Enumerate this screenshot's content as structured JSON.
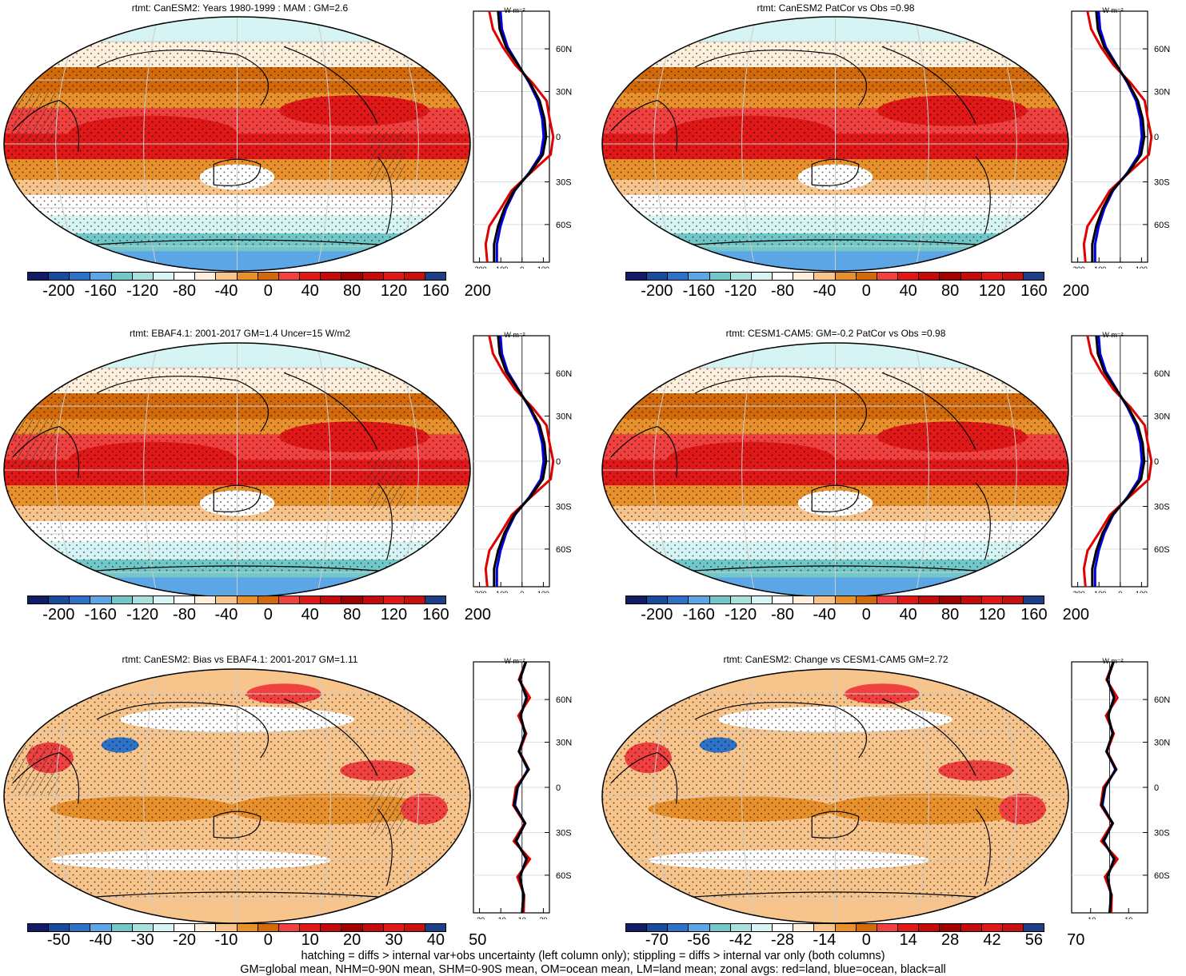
{
  "colors": {
    "levels_20": [
      "#121c64",
      "#1a4a9a",
      "#2d72c6",
      "#5ca6e6",
      "#72c8c8",
      "#a8e0dc",
      "#d6f4f4",
      "#ffffff",
      "#fef0dc",
      "#f7c48c",
      "#e8902c",
      "#d26a0c",
      "#f04040",
      "#e01818",
      "#c40a0a",
      "#a00000",
      "#c40a0a",
      "#e01818",
      "#c81010",
      "#1e3f86"
    ],
    "zonal_land": "#e00000",
    "zonal_ocean": "#0000e0",
    "zonal_all": "#000000"
  },
  "panels": [
    {
      "id": "p1",
      "title": "rtmt: CanESM2: Years 1980-1999 : MAM : GM=2.6",
      "map_kind": "mean",
      "hatching": true,
      "colorbar_labels": [
        "-200",
        "-160",
        "-120",
        "-80",
        "-40",
        "0",
        "40",
        "80",
        "120",
        "160",
        "200"
      ],
      "zonal_unit": "W m⁻²",
      "zonal_xticks": [
        "-200",
        "-100",
        "0",
        "100"
      ],
      "zonal_yticks": [
        "60N",
        "30N",
        "0",
        "30S",
        "60S"
      ]
    },
    {
      "id": "p2",
      "title": "rtmt: CanESM2 PatCor vs Obs =0.98",
      "map_kind": "mean",
      "hatching": false,
      "colorbar_labels": [
        "-200",
        "-160",
        "-120",
        "-80",
        "-40",
        "0",
        "40",
        "80",
        "120",
        "160",
        "200"
      ],
      "zonal_unit": "W m⁻²",
      "zonal_xticks": [
        "-200",
        "-100",
        "0",
        "100"
      ],
      "zonal_yticks": [
        "60N",
        "30N",
        "0",
        "30S",
        "60S"
      ]
    },
    {
      "id": "p3",
      "title": "rtmt: EBAF4.1: 2001-2017 GM=1.4 Uncer=15 W/m2",
      "map_kind": "mean",
      "hatching": true,
      "colorbar_labels": [
        "-200",
        "-160",
        "-120",
        "-80",
        "-40",
        "0",
        "40",
        "80",
        "120",
        "160",
        "200"
      ],
      "zonal_unit": "W m⁻²",
      "zonal_xticks": [
        "-200",
        "-100",
        "0",
        "100"
      ],
      "zonal_yticks": [
        "60N",
        "30N",
        "0",
        "30S",
        "60S"
      ]
    },
    {
      "id": "p4",
      "title": "rtmt: CESM1-CAM5: GM=-0.2 PatCor vs Obs =0.98",
      "map_kind": "mean",
      "hatching": false,
      "colorbar_labels": [
        "-200",
        "-160",
        "-120",
        "-80",
        "-40",
        "0",
        "40",
        "80",
        "120",
        "160",
        "200"
      ],
      "zonal_unit": "W m⁻²",
      "zonal_xticks": [
        "-200",
        "-100",
        "0",
        "100"
      ],
      "zonal_yticks": [
        "60N",
        "30N",
        "0",
        "30S",
        "60S"
      ]
    },
    {
      "id": "p5",
      "title": "rtmt: CanESM2: Bias vs EBAF4.1: 2001-2017 GM=1.11",
      "map_kind": "diff",
      "hatching": true,
      "colorbar_labels": [
        "-50",
        "-40",
        "-30",
        "-20",
        "-10",
        "0",
        "10",
        "20",
        "30",
        "40",
        "50"
      ],
      "zonal_unit": "W m⁻²",
      "zonal_xticks": [
        "-30",
        "-10",
        "10",
        "30"
      ],
      "zonal_yticks": [
        "60N",
        "30N",
        "0",
        "30S",
        "60S"
      ]
    },
    {
      "id": "p6",
      "title": "rtmt: CanESM2: Change vs CESM1-CAM5 GM=2.72",
      "map_kind": "diff",
      "hatching": false,
      "colorbar_labels": [
        "-70",
        "-56",
        "-42",
        "-28",
        "-14",
        "0",
        "14",
        "28",
        "42",
        "56",
        "70"
      ],
      "zonal_unit": "W m⁻²",
      "zonal_xticks": [
        "-10",
        "10"
      ],
      "zonal_yticks": [
        "60N",
        "30N",
        "0",
        "30S",
        "60S"
      ]
    }
  ],
  "footer": {
    "line1": "hatching = diffs > internal var+obs uncertainty (left column only); stippling = diffs > internal var only (both columns)",
    "line2": "GM=global mean, NHM=0-90N mean, SHM=0-90S mean, OM=ocean mean, LM=land mean; zonal avgs: red=land, blue=ocean, black=all"
  }
}
